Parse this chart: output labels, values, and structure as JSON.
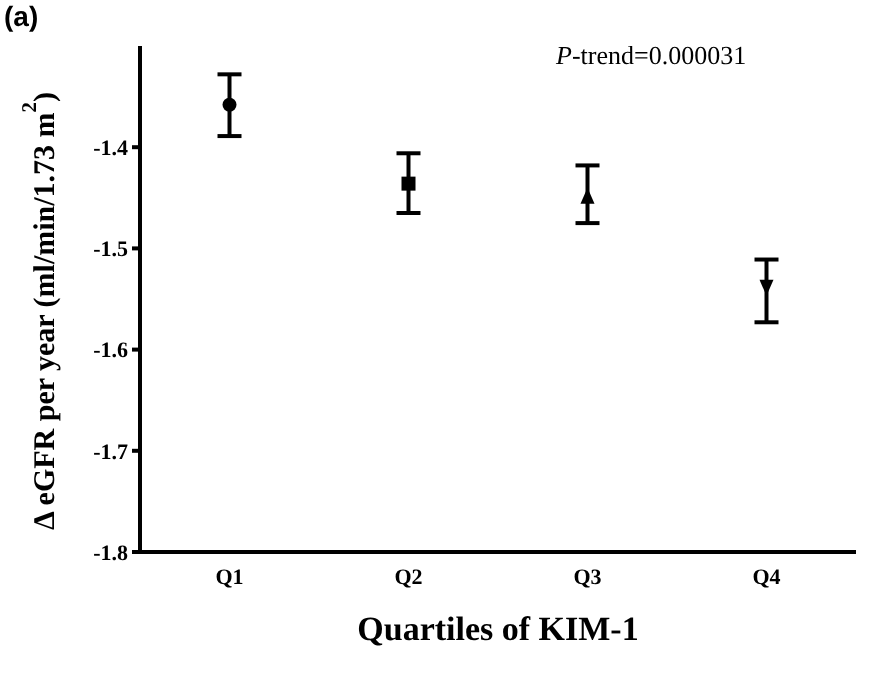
{
  "chart_data": {
    "type": "scatter",
    "title": "(a)",
    "xlabel": "Quartiles of KIM-1",
    "ylabel": "Δ eGFR per year (ml/min/1.73 m$^{2}$)",
    "categories": [
      "Q1",
      "Q2",
      "Q3",
      "Q4"
    ],
    "series": [
      {
        "color": "#000000",
        "marker": "circle",
        "values": [
          -1.358,
          null,
          null,
          null
        ],
        "errors": [
          [
            -1.389,
            -1.328
          ],
          null,
          null,
          null
        ]
      },
      {
        "color": "#000000",
        "marker": "square",
        "values": [
          null,
          -1.436,
          null,
          null
        ],
        "errors": [
          null,
          [
            -1.465,
            -1.406
          ],
          null,
          null
        ]
      },
      {
        "color": "#000000",
        "marker": "triangle",
        "values": [
          null,
          null,
          -1.449,
          null
        ],
        "errors": [
          null,
          null,
          [
            -1.475,
            -1.418
          ],
          null
        ]
      },
      {
        "color": "#000000",
        "marker": "triangle-down",
        "values": [
          null,
          null,
          null,
          -1.538
        ],
        "errors": [
          null,
          null,
          null,
          [
            -1.573,
            -1.511
          ]
        ]
      }
    ],
    "ylim": [
      -1.8,
      -1.3
    ],
    "yticks": [
      -1.8,
      -1.7,
      -1.6,
      -1.5,
      -1.4
    ],
    "annotations": [
      "P-trend=0.000031"
    ],
    "grid": false,
    "legend": false
  }
}
